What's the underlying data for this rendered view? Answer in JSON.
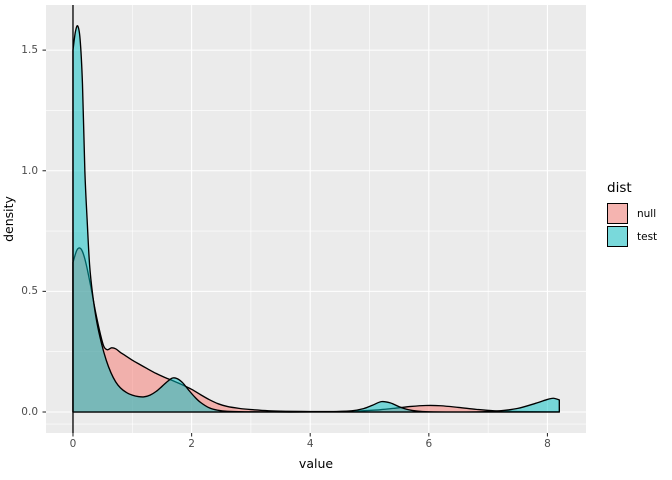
{
  "chart_data": {
    "type": "area",
    "subtype": "density",
    "title": "",
    "xlabel": "value",
    "ylabel": "density",
    "xlim": [
      -0.455,
      8.65
    ],
    "ylim": [
      -0.087,
      1.687
    ],
    "grid": true,
    "panel_color": "#EBEBEB",
    "grid_color": "#FFFFFF",
    "tick_text_color": "#4D4D4D",
    "outline_color": "#000000",
    "vline_x": 0,
    "x_ticks": [
      {
        "label": "0",
        "value": 0
      },
      {
        "label": "2",
        "value": 2
      },
      {
        "label": "4",
        "value": 4
      },
      {
        "label": "6",
        "value": 6
      },
      {
        "label": "8",
        "value": 8
      }
    ],
    "y_ticks": [
      {
        "label": "0.0",
        "value": 0
      },
      {
        "label": "0.5",
        "value": 0.5
      },
      {
        "label": "1.0",
        "value": 1.0
      },
      {
        "label": "1.5",
        "value": 1.5
      }
    ],
    "x_minor": [
      1,
      3,
      5,
      7
    ],
    "y_minor": [
      -0.05,
      0.25,
      0.75,
      1.25
    ],
    "legend": {
      "title": "dist",
      "position": "right",
      "key_bg": "#F2F2F2",
      "entries": [
        {
          "label": "null",
          "color": "#F8766D"
        },
        {
          "label": "test",
          "color": "#00BFC4"
        }
      ]
    },
    "series": [
      {
        "name": "null",
        "fill": "#F8766D",
        "alpha": 0.5,
        "points": [
          [
            0.0,
            0.62
          ],
          [
            0.06,
            0.668
          ],
          [
            0.11,
            0.68
          ],
          [
            0.16,
            0.665
          ],
          [
            0.22,
            0.615
          ],
          [
            0.3,
            0.52
          ],
          [
            0.38,
            0.415
          ],
          [
            0.46,
            0.325
          ],
          [
            0.52,
            0.272
          ],
          [
            0.58,
            0.258
          ],
          [
            0.65,
            0.266
          ],
          [
            0.72,
            0.262
          ],
          [
            0.8,
            0.247
          ],
          [
            0.9,
            0.231
          ],
          [
            1.0,
            0.215
          ],
          [
            1.12,
            0.198
          ],
          [
            1.25,
            0.18
          ],
          [
            1.4,
            0.16
          ],
          [
            1.55,
            0.143
          ],
          [
            1.7,
            0.128
          ],
          [
            1.85,
            0.112
          ],
          [
            2.0,
            0.094
          ],
          [
            2.15,
            0.072
          ],
          [
            2.3,
            0.051
          ],
          [
            2.45,
            0.034
          ],
          [
            2.6,
            0.023
          ],
          [
            2.8,
            0.015
          ],
          [
            3.0,
            0.01
          ],
          [
            3.3,
            0.005
          ],
          [
            3.6,
            0.003
          ],
          [
            4.0,
            0.002
          ],
          [
            4.4,
            0.002
          ],
          [
            4.8,
            0.004
          ],
          [
            5.1,
            0.008
          ],
          [
            5.4,
            0.015
          ],
          [
            5.7,
            0.023
          ],
          [
            5.95,
            0.027
          ],
          [
            6.2,
            0.026
          ],
          [
            6.5,
            0.019
          ],
          [
            6.8,
            0.011
          ],
          [
            7.1,
            0.005
          ],
          [
            7.5,
            0.002
          ],
          [
            8.0,
            0.001
          ],
          [
            8.2,
            0.001
          ]
        ]
      },
      {
        "name": "test",
        "fill": "#00BFC4",
        "alpha": 0.5,
        "points": [
          [
            0.0,
            1.5
          ],
          [
            0.04,
            1.575
          ],
          [
            0.08,
            1.6
          ],
          [
            0.12,
            1.545
          ],
          [
            0.16,
            1.36
          ],
          [
            0.2,
            1.0
          ],
          [
            0.24,
            0.79
          ],
          [
            0.28,
            0.61
          ],
          [
            0.33,
            0.49
          ],
          [
            0.4,
            0.375
          ],
          [
            0.48,
            0.285
          ],
          [
            0.56,
            0.215
          ],
          [
            0.64,
            0.163
          ],
          [
            0.72,
            0.125
          ],
          [
            0.8,
            0.1
          ],
          [
            0.9,
            0.081
          ],
          [
            1.0,
            0.07
          ],
          [
            1.1,
            0.064
          ],
          [
            1.2,
            0.063
          ],
          [
            1.3,
            0.07
          ],
          [
            1.4,
            0.085
          ],
          [
            1.5,
            0.106
          ],
          [
            1.6,
            0.128
          ],
          [
            1.68,
            0.141
          ],
          [
            1.76,
            0.138
          ],
          [
            1.85,
            0.121
          ],
          [
            1.95,
            0.091
          ],
          [
            2.05,
            0.063
          ],
          [
            2.15,
            0.04
          ],
          [
            2.3,
            0.017
          ],
          [
            2.45,
            0.007
          ],
          [
            2.6,
            0.003
          ],
          [
            2.9,
            0.001
          ],
          [
            3.4,
            0.0
          ],
          [
            4.0,
            0.0
          ],
          [
            4.4,
            0.001
          ],
          [
            4.7,
            0.005
          ],
          [
            4.9,
            0.014
          ],
          [
            5.05,
            0.028
          ],
          [
            5.2,
            0.043
          ],
          [
            5.35,
            0.038
          ],
          [
            5.5,
            0.022
          ],
          [
            5.65,
            0.01
          ],
          [
            5.8,
            0.004
          ],
          [
            6.0,
            0.001
          ],
          [
            6.4,
            0.0
          ],
          [
            6.9,
            0.001
          ],
          [
            7.2,
            0.005
          ],
          [
            7.5,
            0.015
          ],
          [
            7.8,
            0.036
          ],
          [
            8.0,
            0.052
          ],
          [
            8.1,
            0.057
          ],
          [
            8.2,
            0.05
          ]
        ]
      }
    ]
  }
}
